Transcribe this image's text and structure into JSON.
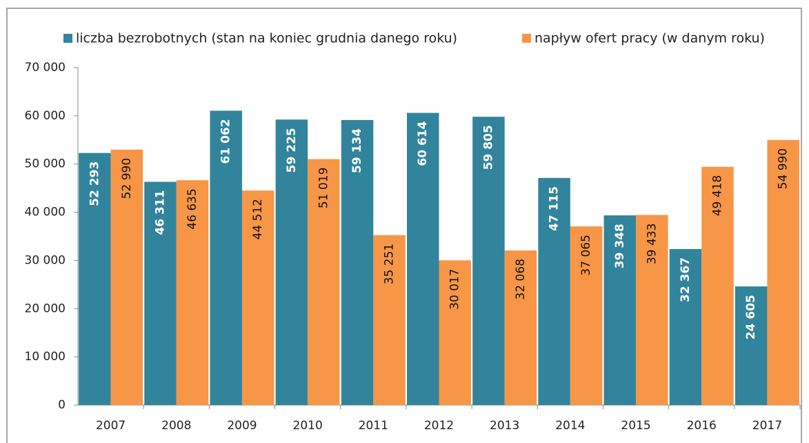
{
  "chart_data": {
    "type": "bar",
    "categories": [
      "2007",
      "2008",
      "2009",
      "2010",
      "2011",
      "2012",
      "2013",
      "2014",
      "2015",
      "2016",
      "2017"
    ],
    "series": [
      {
        "name": "liczba bezrobotnych (stan na koniec grudnia danego roku)",
        "color": "#31849b",
        "values": [
          52293,
          46311,
          61062,
          59225,
          59134,
          60614,
          59805,
          47115,
          39348,
          32367,
          24605
        ],
        "value_labels": [
          "52 293",
          "46 311",
          "61 062",
          "59 225",
          "59 134",
          "60 614",
          "59 805",
          "47 115",
          "39 348",
          "32 367",
          "24 605"
        ]
      },
      {
        "name": "napływ ofert pracy (w danym roku)",
        "color": "#f79646",
        "values": [
          52990,
          46635,
          44512,
          51019,
          35251,
          30017,
          32068,
          37065,
          39433,
          49418,
          54990
        ],
        "value_labels": [
          "52 990",
          "46 635",
          "44 512",
          "51 019",
          "35 251",
          "30 017",
          "32 068",
          "37 065",
          "39 433",
          "49 418",
          "54 990"
        ]
      }
    ],
    "ylim": [
      0,
      70000
    ],
    "yticks": [
      0,
      {
        "value": 10000,
        "label": "10 000"
      },
      {
        "value": 20000,
        "label": "20 000"
      },
      {
        "value": 30000,
        "label": "30 000"
      },
      {
        "value": 40000,
        "label": "40 000"
      },
      {
        "value": 50000,
        "label": "50 000"
      },
      {
        "value": 60000,
        "label": "60 000"
      },
      {
        "value": 70000,
        "label": "70 000"
      }
    ],
    "legend": "top"
  }
}
